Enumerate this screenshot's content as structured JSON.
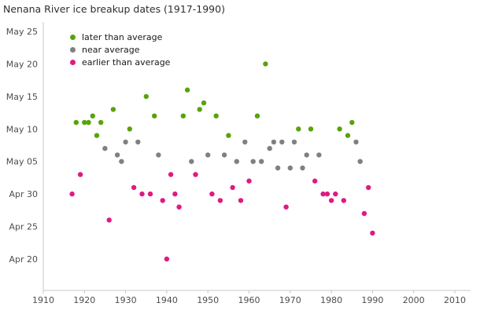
{
  "chart_data": {
    "type": "scatter",
    "title": "Nenana River ice breakup dates (1917-1990)",
    "xlabel": "",
    "ylabel": "",
    "grid": false,
    "legend_position": "top-left",
    "xlim": [
      1908,
      2013
    ],
    "x_ticks": [
      1910,
      1920,
      1930,
      1940,
      1950,
      1960,
      1970,
      1980,
      1990,
      2000,
      2010
    ],
    "y_ticks": [
      "Apr 20",
      "Apr 25",
      "Apr 30",
      "May 05",
      "May 10",
      "May 15",
      "May 20",
      "May 25"
    ],
    "axis_color": "#c8c8c8",
    "tick_text_color": "#4d4d4d",
    "legend_order": [
      "later",
      "near",
      "earlier"
    ],
    "categories": {
      "later": {
        "label": "later than average",
        "color": "#58a30c"
      },
      "near": {
        "label": "near average",
        "color": "#808080"
      },
      "earlier": {
        "label": "earlier than average",
        "color": "#e01a82"
      }
    },
    "points": [
      {
        "year": 1917,
        "date": "Apr 30",
        "category": "earlier"
      },
      {
        "year": 1918,
        "date": "May 11",
        "category": "later"
      },
      {
        "year": 1919,
        "date": "May 03",
        "category": "earlier"
      },
      {
        "year": 1920,
        "date": "May 11",
        "category": "later"
      },
      {
        "year": 1921,
        "date": "May 11",
        "category": "later"
      },
      {
        "year": 1922,
        "date": "May 12",
        "category": "later"
      },
      {
        "year": 1923,
        "date": "May 09",
        "category": "later"
      },
      {
        "year": 1924,
        "date": "May 11",
        "category": "later"
      },
      {
        "year": 1925,
        "date": "May 07",
        "category": "near"
      },
      {
        "year": 1926,
        "date": "Apr 26",
        "category": "earlier"
      },
      {
        "year": 1927,
        "date": "May 13",
        "category": "later"
      },
      {
        "year": 1928,
        "date": "May 06",
        "category": "near"
      },
      {
        "year": 1929,
        "date": "May 05",
        "category": "near"
      },
      {
        "year": 1930,
        "date": "May 08",
        "category": "near"
      },
      {
        "year": 1931,
        "date": "May 10",
        "category": "later"
      },
      {
        "year": 1932,
        "date": "May 01",
        "category": "earlier"
      },
      {
        "year": 1933,
        "date": "May 08",
        "category": "near"
      },
      {
        "year": 1934,
        "date": "Apr 30",
        "category": "earlier"
      },
      {
        "year": 1935,
        "date": "May 15",
        "category": "later"
      },
      {
        "year": 1936,
        "date": "Apr 30",
        "category": "earlier"
      },
      {
        "year": 1937,
        "date": "May 12",
        "category": "later"
      },
      {
        "year": 1938,
        "date": "May 06",
        "category": "near"
      },
      {
        "year": 1939,
        "date": "Apr 29",
        "category": "earlier"
      },
      {
        "year": 1940,
        "date": "Apr 20",
        "category": "earlier"
      },
      {
        "year": 1941,
        "date": "May 03",
        "category": "earlier"
      },
      {
        "year": 1942,
        "date": "Apr 30",
        "category": "earlier"
      },
      {
        "year": 1943,
        "date": "Apr 28",
        "category": "earlier"
      },
      {
        "year": 1944,
        "date": "May 12",
        "category": "later"
      },
      {
        "year": 1945,
        "date": "May 16",
        "category": "later"
      },
      {
        "year": 1946,
        "date": "May 05",
        "category": "near"
      },
      {
        "year": 1947,
        "date": "May 03",
        "category": "earlier"
      },
      {
        "year": 1948,
        "date": "May 13",
        "category": "later"
      },
      {
        "year": 1949,
        "date": "May 14",
        "category": "later"
      },
      {
        "year": 1950,
        "date": "May 06",
        "category": "near"
      },
      {
        "year": 1951,
        "date": "Apr 30",
        "category": "earlier"
      },
      {
        "year": 1952,
        "date": "May 12",
        "category": "later"
      },
      {
        "year": 1953,
        "date": "Apr 29",
        "category": "earlier"
      },
      {
        "year": 1954,
        "date": "May 06",
        "category": "near"
      },
      {
        "year": 1955,
        "date": "May 09",
        "category": "later"
      },
      {
        "year": 1956,
        "date": "May 01",
        "category": "earlier"
      },
      {
        "year": 1957,
        "date": "May 05",
        "category": "near"
      },
      {
        "year": 1958,
        "date": "Apr 29",
        "category": "earlier"
      },
      {
        "year": 1959,
        "date": "May 08",
        "category": "near"
      },
      {
        "year": 1960,
        "date": "May 02",
        "category": "earlier"
      },
      {
        "year": 1961,
        "date": "May 05",
        "category": "near"
      },
      {
        "year": 1962,
        "date": "May 12",
        "category": "later"
      },
      {
        "year": 1963,
        "date": "May 05",
        "category": "near"
      },
      {
        "year": 1964,
        "date": "May 20",
        "category": "later"
      },
      {
        "year": 1965,
        "date": "May 07",
        "category": "near"
      },
      {
        "year": 1966,
        "date": "May 08",
        "category": "near"
      },
      {
        "year": 1967,
        "date": "May 04",
        "category": "near"
      },
      {
        "year": 1968,
        "date": "May 08",
        "category": "near"
      },
      {
        "year": 1969,
        "date": "Apr 28",
        "category": "earlier"
      },
      {
        "year": 1970,
        "date": "May 04",
        "category": "near"
      },
      {
        "year": 1971,
        "date": "May 08",
        "category": "near"
      },
      {
        "year": 1972,
        "date": "May 10",
        "category": "later"
      },
      {
        "year": 1973,
        "date": "May 04",
        "category": "near"
      },
      {
        "year": 1974,
        "date": "May 06",
        "category": "near"
      },
      {
        "year": 1975,
        "date": "May 10",
        "category": "later"
      },
      {
        "year": 1976,
        "date": "May 02",
        "category": "earlier"
      },
      {
        "year": 1977,
        "date": "May 06",
        "category": "near"
      },
      {
        "year": 1978,
        "date": "Apr 30",
        "category": "earlier"
      },
      {
        "year": 1979,
        "date": "Apr 30",
        "category": "earlier"
      },
      {
        "year": 1980,
        "date": "Apr 29",
        "category": "earlier"
      },
      {
        "year": 1981,
        "date": "Apr 30",
        "category": "earlier"
      },
      {
        "year": 1982,
        "date": "May 10",
        "category": "later"
      },
      {
        "year": 1983,
        "date": "Apr 29",
        "category": "earlier"
      },
      {
        "year": 1984,
        "date": "May 09",
        "category": "later"
      },
      {
        "year": 1985,
        "date": "May 11",
        "category": "later"
      },
      {
        "year": 1986,
        "date": "May 08",
        "category": "near"
      },
      {
        "year": 1987,
        "date": "May 05",
        "category": "near"
      },
      {
        "year": 1988,
        "date": "Apr 27",
        "category": "earlier"
      },
      {
        "year": 1989,
        "date": "May 01",
        "category": "earlier"
      },
      {
        "year": 1990,
        "date": "Apr 24",
        "category": "earlier"
      }
    ]
  }
}
